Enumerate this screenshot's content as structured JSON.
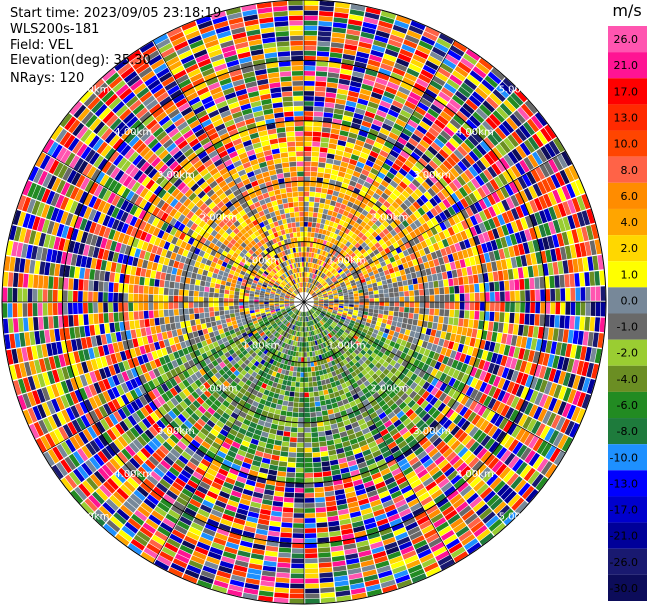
{
  "header": {
    "start_time": "Start time: 2023/09/05 23:18:19",
    "lidar": "WLS200s-181",
    "field": "Field: VEL",
    "elevation": "Elevation(deg): 35.30",
    "nrays": "NRays: 120"
  },
  "chart_data": {
    "type": "heatmap",
    "subtype": "polar-ppi",
    "nrays": 120,
    "range_rings": [
      1,
      2,
      3,
      4,
      5
    ],
    "ring_labels": [
      "1.00km",
      "2.00km",
      "3.00km",
      "4.00km",
      "5.00km"
    ],
    "colorbar": {
      "unit": "m/s",
      "ticks": [
        "26.0",
        "21.0",
        "17.0",
        "13.0",
        "10.0",
        "8.0",
        "6.0",
        "4.0",
        "2.0",
        "1.0",
        "0.0",
        "-1.0",
        "-2.0",
        "-4.0",
        "-6.0",
        "-8.0",
        "-10.0",
        "-13.0",
        "-17.0",
        "-21.0",
        "-26.0",
        "-30.0"
      ],
      "colors": [
        "#ff55b0",
        "#ff1493",
        "#ff0000",
        "#ff2a00",
        "#ff4500",
        "#ff6347",
        "#ff8c00",
        "#ffa500",
        "#ffd700",
        "#ffff00",
        "#778899",
        "#696969",
        "#9acd32",
        "#6b8e23",
        "#228b22",
        "#1e7b3c",
        "#1e90ff",
        "#0000ff",
        "#0000cd",
        "#000099",
        "#191970",
        "#0c0c5a"
      ]
    }
  }
}
